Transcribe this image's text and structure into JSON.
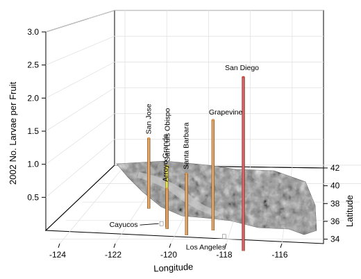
{
  "chart_data": {
    "type": "bar",
    "projection": "3d",
    "xlabel": "Longitude",
    "ylabel": "Latitude",
    "zlabel": "2002 No. Larvae per Fruit",
    "xlim": [
      -124.5,
      -114.5
    ],
    "ylim": [
      33.5,
      42
    ],
    "zlim": [
      0,
      3.0
    ],
    "x_ticks": [
      -124,
      -122,
      -120,
      -118,
      -116
    ],
    "y_ticks": [
      34,
      36,
      38,
      40,
      42
    ],
    "z_ticks": [
      "0.5",
      "1.0",
      "1.5",
      "2.0",
      "2.5",
      "3.0"
    ],
    "grid": true,
    "basemap": "grayscale shaded relief of California",
    "stations": [
      {
        "name": "San Jose",
        "lon": -121.9,
        "lat": 37.3,
        "value": 1.05,
        "color": "#f0a050"
      },
      {
        "name": "Arroyo Grande",
        "lon": -120.6,
        "lat": 35.1,
        "value": 0.6,
        "color": "#f0a050"
      },
      {
        "name": "San Luis Obispo",
        "lon": -120.66,
        "lat": 35.28,
        "value": 0.92,
        "color": "#f2ef3a"
      },
      {
        "name": "Santa Barbara",
        "lon": -119.7,
        "lat": 34.42,
        "value": 0.92,
        "color": "#f0a050"
      },
      {
        "name": "Grapevine",
        "lon": -118.9,
        "lat": 34.95,
        "value": 1.65,
        "color": "#f0a050"
      },
      {
        "name": "San Diego",
        "lon": -117.16,
        "lat": 32.72,
        "value": 2.6,
        "color": "#e0444e"
      },
      {
        "name": "Cayucos",
        "lon": -120.9,
        "lat": 35.44,
        "value": 0.0,
        "color": "#ffffff"
      },
      {
        "name": "Los Angeles",
        "lon": -118.24,
        "lat": 34.05,
        "value": 0.0,
        "color": "#ffffff"
      }
    ]
  }
}
